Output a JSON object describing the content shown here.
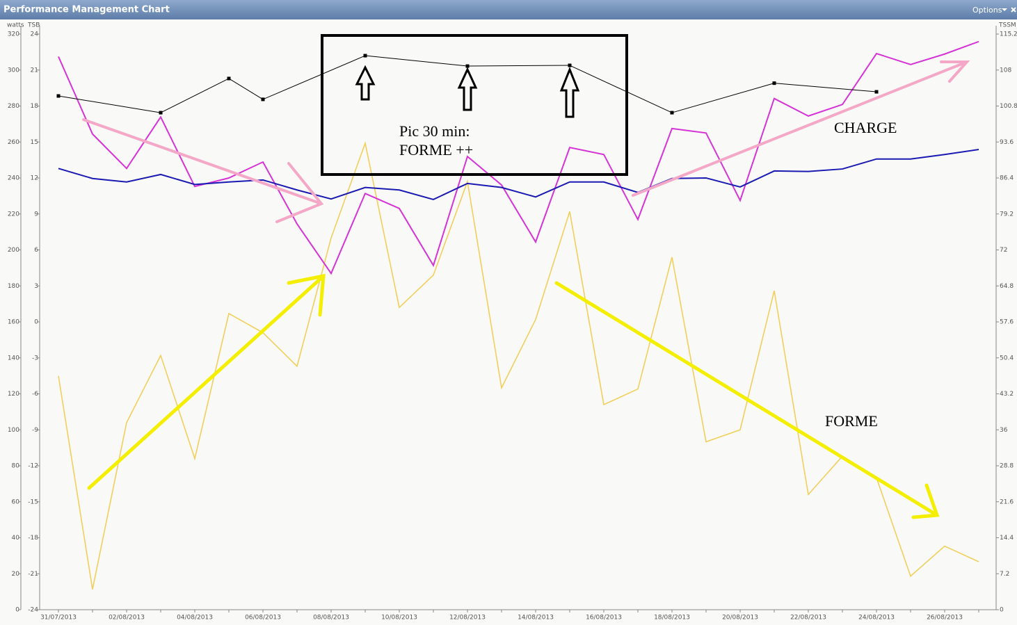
{
  "window": {
    "menu": "Options"
  },
  "chart_data": {
    "type": "line",
    "title": "Performance Management Chart",
    "ylabel": "watts",
    "y3label": "TSB",
    "y2label": "TSSM",
    "categories": [
      "31/07/2013",
      null,
      "02/08/2013",
      null,
      "04/08/2013",
      null,
      "06/08/2013",
      null,
      "08/08/2013",
      null,
      "10/08/2013",
      null,
      "12/08/2013",
      null,
      "14/08/2013",
      null,
      "16/08/2013",
      null,
      "18/08/2013",
      null,
      "20/08/2013",
      null,
      "22/08/2013",
      null,
      "24/08/2013",
      null,
      "26/08/2013",
      null
    ],
    "ylim": [
      0,
      320
    ],
    "yticks": [
      0,
      20,
      40,
      60,
      80,
      100,
      120,
      140,
      160,
      180,
      200,
      220,
      240,
      260,
      280,
      300,
      320
    ],
    "y3lim": [
      -24,
      24
    ],
    "y3ticks": [
      -24,
      -21,
      -18,
      -15,
      -12,
      -9,
      -6,
      -3,
      0,
      3,
      6,
      9,
      12,
      15,
      18,
      21,
      24
    ],
    "y2lim": [
      0,
      115.2
    ],
    "y2ticks": [
      0,
      7.2,
      14.4,
      21.6,
      28.8,
      36,
      43.2,
      50.4,
      57.6,
      64.8,
      72,
      79.2,
      86.4,
      93.6,
      100.8,
      108,
      115.2
    ],
    "series": [
      {
        "color": "#f2cf5b",
        "axis": "y3",
        "values": [
          -4.5,
          -22.3,
          -8.4,
          -2.8,
          -11.4,
          0.7,
          -0.9,
          -3.7,
          7.0,
          14.9,
          1.2,
          3.9,
          11.7,
          -5.5,
          0.2,
          9.2,
          -6.9,
          -5.6,
          5.4,
          -10.0,
          -9.0,
          2.6,
          -14.4,
          -11.2,
          -13.0,
          -21.2,
          -18.7,
          -20.0
        ]
      },
      {
        "color": "#d633d6",
        "axis": "y2",
        "values": [
          110.7,
          95.2,
          88.3,
          98.6,
          84.7,
          86.4,
          89.6,
          77.2,
          67.3,
          83.3,
          80.3,
          68.9,
          90.7,
          85.0,
          73.6,
          92.5,
          91.1,
          78.1,
          96.3,
          95.4,
          81.9,
          102.3,
          98.8,
          101.1,
          111.3,
          109.1,
          111.2,
          113.7
        ]
      },
      {
        "color": "#1a1ab3",
        "axis": "y2",
        "values": [
          88.3,
          86.3,
          85.6,
          87.1,
          85.1,
          85.6,
          86.0,
          84.0,
          82.2,
          84.5,
          84.0,
          82.1,
          85.3,
          84.5,
          82.6,
          85.6,
          85.6,
          83.5,
          86.3,
          86.4,
          84.6,
          87.8,
          87.7,
          88.2,
          90.2,
          90.2,
          91.1,
          92.1
        ]
      },
      {
        "color": "#000000",
        "axis": "y",
        "markers": true,
        "values": [
          285.6,
          null,
          null,
          276.3,
          null,
          295.3,
          283.7,
          null,
          null,
          308.0,
          null,
          null,
          302.2,
          null,
          null,
          302.6,
          null,
          null,
          276.3,
          null,
          null,
          292.7,
          null,
          null,
          287.9,
          null,
          null,
          null
        ]
      }
    ],
    "annotations": [
      "Pic 30 min:",
      "FORME ++",
      "CHARGE",
      "FORME"
    ]
  }
}
